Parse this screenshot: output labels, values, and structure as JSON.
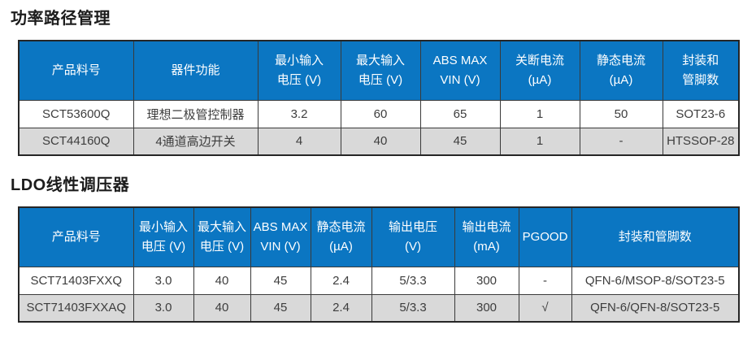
{
  "colors": {
    "header_bg": "#0b76c2",
    "header_text": "#ffffff",
    "row_bg": "#ffffff",
    "row_alt_bg": "#d9d9d9",
    "cell_text": "#3d3d3d",
    "inner_border": "#3a3a3a",
    "outer_border": "#262626",
    "title_text": "#1c1c1c"
  },
  "sections": [
    {
      "title": "功率路径管理",
      "columns": [
        "产品料号",
        "器件功能",
        "最小输入\n电压 (V)",
        "最大输入\n电压 (V)",
        "ABS MAX\nVIN (V)",
        "关断电流\n(µA)",
        "静态电流\n(µA)",
        "封装和\n管脚数"
      ],
      "rows": [
        [
          "SCT53600Q",
          "理想二极管控制器",
          "3.2",
          "60",
          "65",
          "1",
          "50",
          "SOT23-6"
        ],
        [
          "SCT44160Q",
          "4通道高边开关",
          "4",
          "40",
          "45",
          "1",
          "-",
          "HTSSOP-28"
        ]
      ]
    },
    {
      "title": "LDO线性调压器",
      "columns": [
        "产品料号",
        "最小输入\n电压 (V)",
        "最大输入\n电压 (V)",
        "ABS MAX\nVIN (V)",
        "静态电流\n(µA)",
        "输出电压\n(V)",
        "输出电流\n(mA)",
        "PGOOD",
        "封装和管脚数"
      ],
      "rows": [
        [
          "SCT71403FXXQ",
          "3.0",
          "40",
          "45",
          "2.4",
          "5/3.3",
          "300",
          "-",
          "QFN-6/MSOP-8/SOT23-5"
        ],
        [
          "SCT71403FXXAQ",
          "3.0",
          "40",
          "45",
          "2.4",
          "5/3.3",
          "300",
          "√",
          "QFN-6/QFN-8/SOT23-5"
        ]
      ]
    }
  ]
}
